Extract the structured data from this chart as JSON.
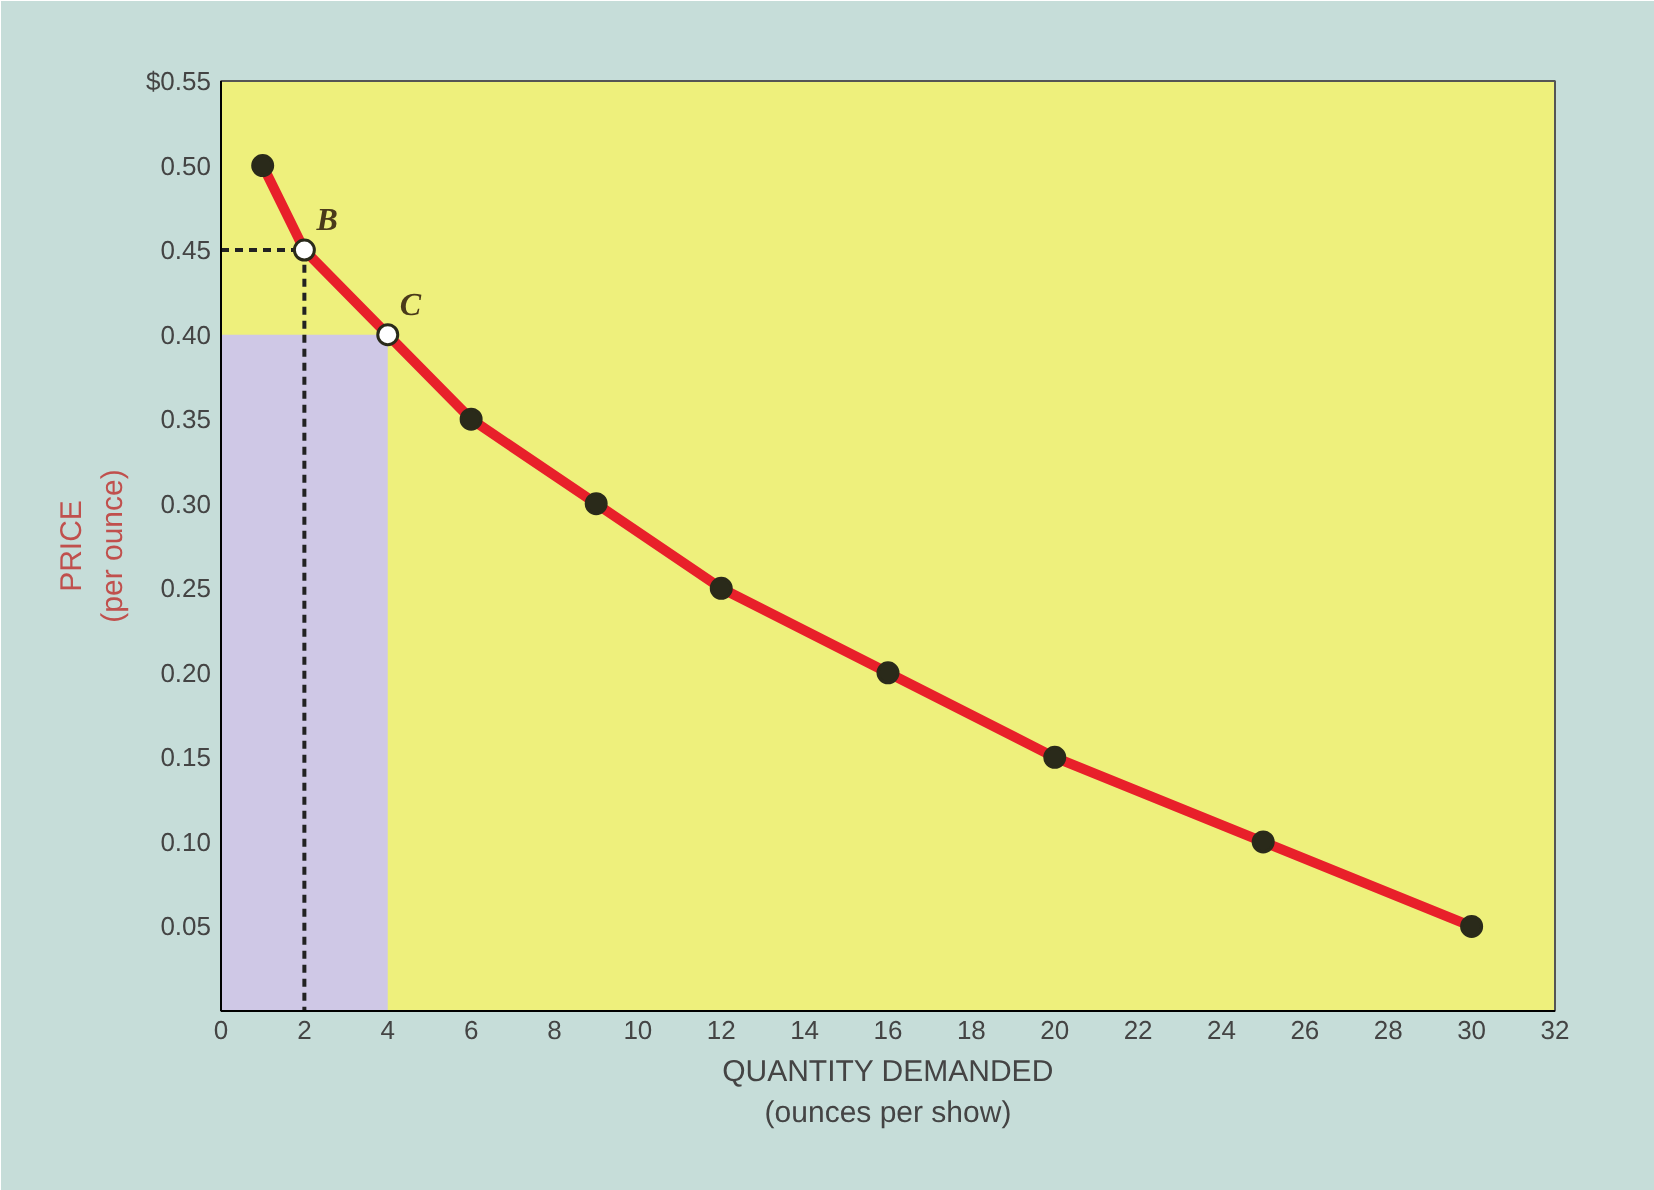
{
  "chart_data": {
    "type": "line",
    "xlabel": "QUANTITY DEMANDED\n(ounces per show)",
    "ylabel": "PRICE\n(per ounce)",
    "xlim": [
      0,
      32
    ],
    "xticks": [
      0,
      2,
      4,
      6,
      8,
      10,
      12,
      14,
      16,
      18,
      20,
      22,
      24,
      26,
      28,
      30,
      32
    ],
    "ylim": [
      0,
      0.55
    ],
    "yticks": [
      0.05,
      {
        "value": 0.1,
        "label": "0.10"
      },
      0.15,
      {
        "value": 0.2,
        "label": "0.20"
      },
      0.25,
      {
        "value": 0.3,
        "label": "0.30"
      },
      0.35,
      {
        "value": 0.4,
        "label": "0.40"
      },
      0.45,
      {
        "value": 0.5,
        "label": "0.50"
      },
      {
        "value": 0.55,
        "label": "$0.55"
      }
    ],
    "grid": false,
    "series": [
      {
        "type": "area",
        "color": "#cfc8e6",
        "x": [
          0,
          4
        ],
        "values": [
          0.4,
          0.4
        ]
      },
      {
        "type": "line",
        "color": "#222222",
        "line_style": "dashed",
        "x": [
          0,
          2,
          2
        ],
        "values": [
          0.45,
          0.45,
          0
        ]
      },
      {
        "color": "#e8202a",
        "marker": "none",
        "x": [
          1,
          2,
          4,
          6,
          9,
          12,
          16,
          20,
          25,
          30
        ],
        "values": [
          0.5,
          0.45,
          0.4,
          0.35,
          0.3,
          0.25,
          0.2,
          0.15,
          0.1,
          0.05
        ]
      },
      {
        "type": "scatter",
        "marker": "circle",
        "x": [
          1,
          2,
          4,
          6,
          9,
          12,
          16,
          20,
          25,
          30
        ],
        "values": [
          0.5,
          0.45,
          0.4,
          0.35,
          0.3,
          0.25,
          0.2,
          0.15,
          0.1,
          0.05
        ],
        "colors": [
          "#2a2a1a",
          "#ffffff",
          "#ffffff",
          "#2a2a1a",
          "#2a2a1a",
          "#2a2a1a",
          "#2a2a1a",
          "#2a2a1a",
          "#2a2a1a",
          "#2a2a1a"
        ]
      }
    ],
    "annotations": [
      {
        "text": "B",
        "x": 2,
        "y": 0.45
      },
      {
        "text": "C",
        "x": 4,
        "y": 0.4
      }
    ]
  }
}
